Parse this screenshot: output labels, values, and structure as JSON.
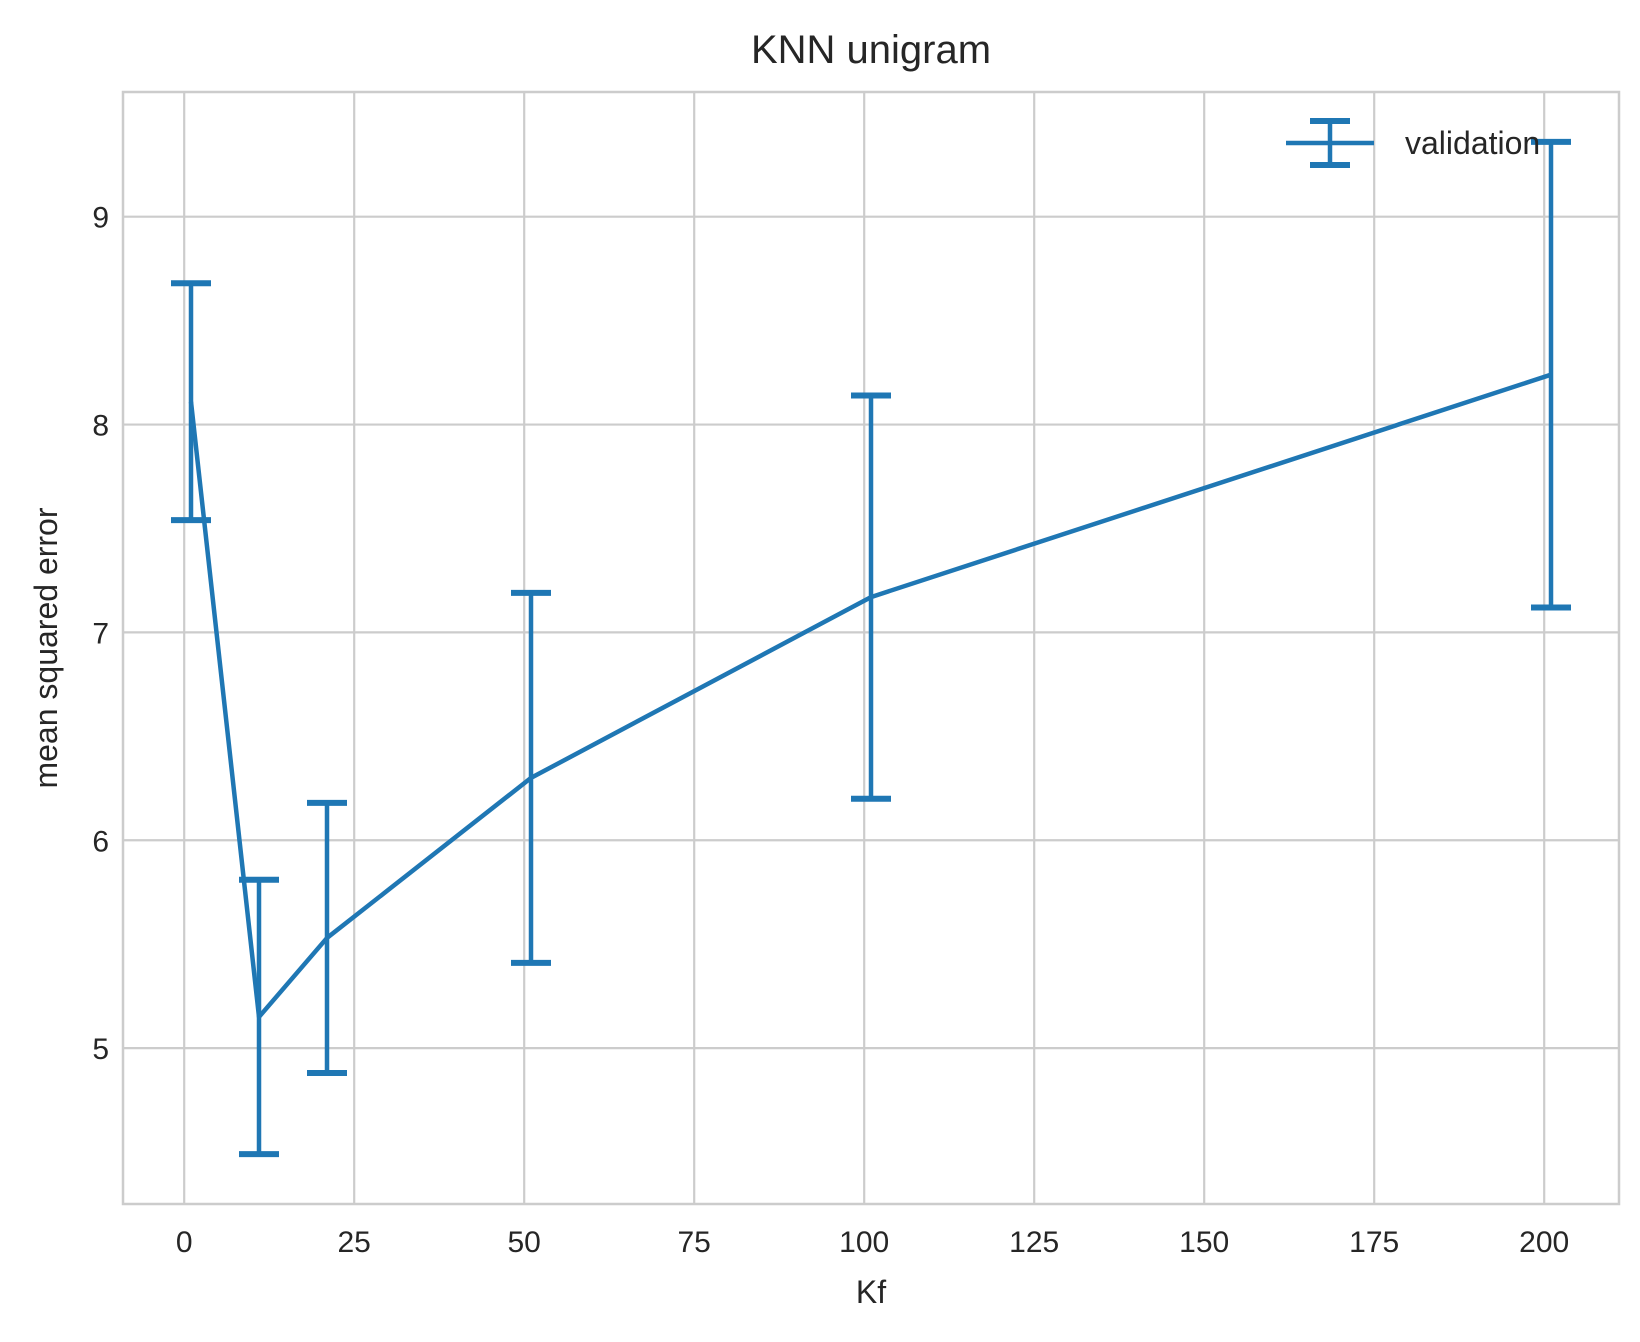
{
  "chart_data": {
    "type": "line",
    "title": "KNN unigram",
    "xlabel": "Kf",
    "ylabel": "mean squared error",
    "xlim": [
      -9,
      211
    ],
    "ylim": [
      4.25,
      9.6
    ],
    "xticks": [
      0,
      25,
      50,
      75,
      100,
      125,
      150,
      175,
      200
    ],
    "yticks": [
      5,
      6,
      7,
      8,
      9
    ],
    "grid": true,
    "legend": {
      "position": "top-right"
    },
    "series": [
      {
        "name": "validation",
        "color": "#1f77b4",
        "errorbars": true,
        "x": [
          1,
          11,
          21,
          51,
          101,
          201
        ],
        "y": [
          8.11,
          5.15,
          5.53,
          6.3,
          7.17,
          8.24
        ],
        "err": [
          0.57,
          0.66,
          0.65,
          0.89,
          0.97,
          1.12
        ]
      }
    ]
  }
}
